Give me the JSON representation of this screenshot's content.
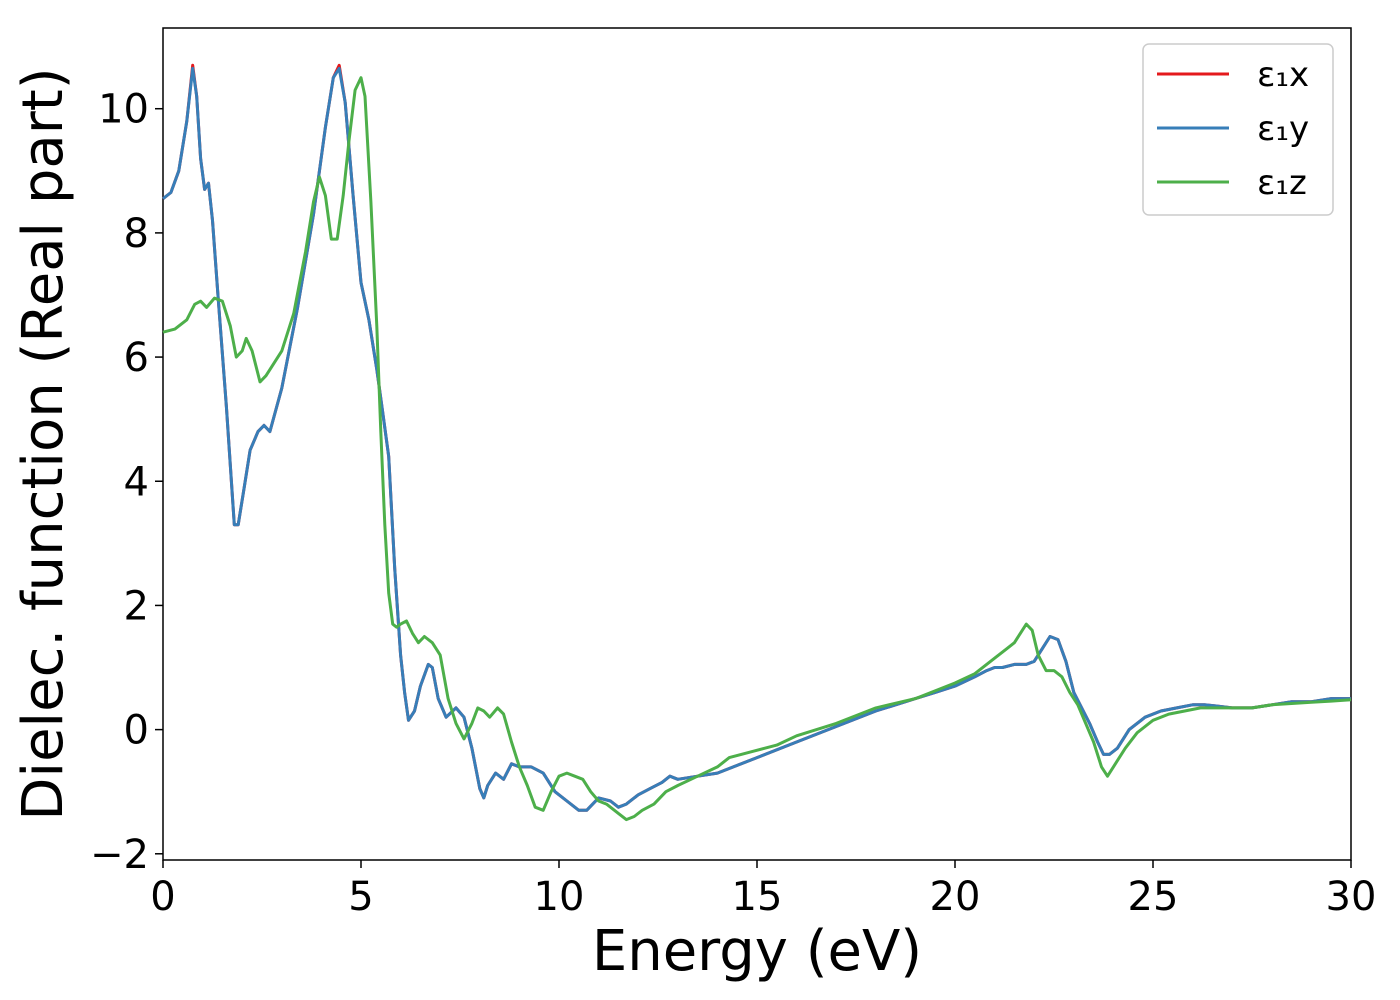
{
  "chart_data": {
    "type": "line",
    "xlabel": "Energy (eV)",
    "ylabel": "Dielec. function (Real part)",
    "xlim": [
      0,
      30
    ],
    "ylim": [
      -2.1,
      11.3
    ],
    "xticks": [
      0,
      5,
      10,
      15,
      20,
      25,
      30
    ],
    "yticks": [
      -2,
      0,
      2,
      4,
      6,
      8,
      10
    ],
    "xtick_labels": [
      "0",
      "5",
      "10",
      "15",
      "20",
      "25",
      "30"
    ],
    "ytick_labels": [
      "−2",
      "0",
      "2",
      "4",
      "6",
      "8",
      "10"
    ],
    "grid": false,
    "legend": "top-right",
    "series": [
      {
        "name": "ε₁x",
        "color": "#e41a1c",
        "x": [
          0,
          0.2,
          0.4,
          0.6,
          0.75,
          0.85,
          0.95,
          1.05,
          1.15,
          1.25,
          1.4,
          1.6,
          1.8,
          1.9,
          2.05,
          2.2,
          2.4,
          2.55,
          2.7,
          3.0,
          3.4,
          3.8,
          4.1,
          4.3,
          4.45,
          4.6,
          4.8,
          5.0,
          5.2,
          5.4,
          5.55,
          5.7,
          5.85,
          6.0,
          6.1,
          6.2,
          6.35,
          6.5,
          6.7,
          6.8,
          6.95,
          7.15,
          7.4,
          7.6,
          7.8,
          8.0,
          8.1,
          8.2,
          8.4,
          8.6,
          8.8,
          9.0,
          9.3,
          9.6,
          9.9,
          10.2,
          10.5,
          10.7,
          11.0,
          11.3,
          11.5,
          11.7,
          12.0,
          12.3,
          12.6,
          12.8,
          13.0,
          13.5,
          14.0,
          15.0,
          16.0,
          17.0,
          18.0,
          19.0,
          19.5,
          20.0,
          20.5,
          20.8,
          21.0,
          21.2,
          21.5,
          21.8,
          22.0,
          22.2,
          22.4,
          22.6,
          22.8,
          23.0,
          23.2,
          23.4,
          23.6,
          23.75,
          23.9,
          24.1,
          24.4,
          24.8,
          25.2,
          25.6,
          26.0,
          26.3,
          26.6,
          27.0,
          27.5,
          28.0,
          28.5,
          29.0,
          29.5,
          30.0
        ],
        "y": [
          8.55,
          8.65,
          9.0,
          9.8,
          10.7,
          10.2,
          9.2,
          8.7,
          8.8,
          8.2,
          6.9,
          5.2,
          3.3,
          3.3,
          3.9,
          4.5,
          4.8,
          4.9,
          4.8,
          5.5,
          6.8,
          8.3,
          9.7,
          10.5,
          10.7,
          10.1,
          8.6,
          7.2,
          6.6,
          5.8,
          5.1,
          4.4,
          2.6,
          1.2,
          0.6,
          0.15,
          0.3,
          0.7,
          1.05,
          1.0,
          0.5,
          0.2,
          0.35,
          0.2,
          -0.3,
          -0.95,
          -1.1,
          -0.9,
          -0.7,
          -0.8,
          -0.55,
          -0.6,
          -0.6,
          -0.7,
          -1.0,
          -1.15,
          -1.3,
          -1.3,
          -1.1,
          -1.15,
          -1.25,
          -1.2,
          -1.05,
          -0.95,
          -0.85,
          -0.75,
          -0.8,
          -0.75,
          -0.7,
          -0.45,
          -0.2,
          0.05,
          0.3,
          0.5,
          0.6,
          0.7,
          0.85,
          0.95,
          1.0,
          1.0,
          1.05,
          1.05,
          1.1,
          1.3,
          1.5,
          1.45,
          1.1,
          0.6,
          0.35,
          0.1,
          -0.2,
          -0.4,
          -0.4,
          -0.3,
          0.0,
          0.2,
          0.3,
          0.35,
          0.4,
          0.4,
          0.38,
          0.35,
          0.35,
          0.4,
          0.45,
          0.45,
          0.5,
          0.5
        ]
      },
      {
        "name": "ε₁y",
        "color": "#377eb8",
        "x": [
          0,
          0.2,
          0.4,
          0.6,
          0.75,
          0.85,
          0.95,
          1.05,
          1.15,
          1.25,
          1.4,
          1.6,
          1.8,
          1.9,
          2.05,
          2.2,
          2.4,
          2.55,
          2.7,
          3.0,
          3.4,
          3.8,
          4.1,
          4.3,
          4.45,
          4.6,
          4.8,
          5.0,
          5.2,
          5.4,
          5.55,
          5.7,
          5.85,
          6.0,
          6.1,
          6.2,
          6.35,
          6.5,
          6.7,
          6.8,
          6.95,
          7.15,
          7.4,
          7.6,
          7.8,
          8.0,
          8.1,
          8.2,
          8.4,
          8.6,
          8.8,
          9.0,
          9.3,
          9.6,
          9.9,
          10.2,
          10.5,
          10.7,
          11.0,
          11.3,
          11.5,
          11.7,
          12.0,
          12.3,
          12.6,
          12.8,
          13.0,
          13.5,
          14.0,
          15.0,
          16.0,
          17.0,
          18.0,
          19.0,
          19.5,
          20.0,
          20.5,
          20.8,
          21.0,
          21.2,
          21.5,
          21.8,
          22.0,
          22.2,
          22.4,
          22.6,
          22.8,
          23.0,
          23.2,
          23.4,
          23.6,
          23.75,
          23.9,
          24.1,
          24.4,
          24.8,
          25.2,
          25.6,
          26.0,
          26.3,
          26.6,
          27.0,
          27.5,
          28.0,
          28.5,
          29.0,
          29.5,
          30.0
        ],
        "y": [
          8.55,
          8.65,
          9.0,
          9.8,
          10.65,
          10.2,
          9.2,
          8.7,
          8.8,
          8.2,
          6.9,
          5.2,
          3.3,
          3.3,
          3.9,
          4.5,
          4.8,
          4.9,
          4.8,
          5.5,
          6.8,
          8.3,
          9.7,
          10.5,
          10.65,
          10.1,
          8.6,
          7.2,
          6.6,
          5.8,
          5.1,
          4.4,
          2.6,
          1.2,
          0.6,
          0.15,
          0.3,
          0.7,
          1.05,
          1.0,
          0.5,
          0.2,
          0.35,
          0.2,
          -0.3,
          -0.95,
          -1.1,
          -0.9,
          -0.7,
          -0.8,
          -0.55,
          -0.6,
          -0.6,
          -0.7,
          -1.0,
          -1.15,
          -1.3,
          -1.3,
          -1.1,
          -1.15,
          -1.25,
          -1.2,
          -1.05,
          -0.95,
          -0.85,
          -0.75,
          -0.8,
          -0.75,
          -0.7,
          -0.45,
          -0.2,
          0.05,
          0.3,
          0.5,
          0.6,
          0.7,
          0.85,
          0.95,
          1.0,
          1.0,
          1.05,
          1.05,
          1.1,
          1.3,
          1.5,
          1.45,
          1.1,
          0.6,
          0.35,
          0.1,
          -0.2,
          -0.4,
          -0.4,
          -0.3,
          0.0,
          0.2,
          0.3,
          0.35,
          0.4,
          0.4,
          0.38,
          0.35,
          0.35,
          0.4,
          0.45,
          0.45,
          0.5,
          0.5
        ]
      },
      {
        "name": "ε₁z",
        "color": "#4daf4a",
        "x": [
          0,
          0.3,
          0.6,
          0.8,
          0.95,
          1.1,
          1.3,
          1.5,
          1.7,
          1.85,
          2.0,
          2.1,
          2.25,
          2.45,
          2.6,
          2.8,
          3.0,
          3.3,
          3.6,
          3.8,
          3.95,
          4.1,
          4.25,
          4.4,
          4.55,
          4.7,
          4.85,
          5.0,
          5.1,
          5.25,
          5.4,
          5.5,
          5.6,
          5.7,
          5.8,
          5.9,
          6.0,
          6.15,
          6.3,
          6.45,
          6.6,
          6.8,
          7.0,
          7.2,
          7.4,
          7.6,
          7.8,
          7.95,
          8.1,
          8.25,
          8.45,
          8.6,
          8.8,
          9.0,
          9.2,
          9.4,
          9.6,
          9.8,
          10.0,
          10.2,
          10.4,
          10.6,
          10.8,
          11.0,
          11.2,
          11.5,
          11.7,
          11.9,
          12.1,
          12.4,
          12.7,
          13.0,
          13.5,
          14.0,
          14.3,
          14.6,
          14.9,
          15.2,
          15.5,
          16.0,
          17.0,
          18.0,
          19.0,
          20.0,
          20.5,
          21.0,
          21.3,
          21.5,
          21.65,
          21.8,
          21.95,
          22.1,
          22.3,
          22.5,
          22.7,
          22.9,
          23.1,
          23.3,
          23.5,
          23.7,
          23.85,
          24.0,
          24.3,
          24.6,
          25.0,
          25.4,
          25.8,
          26.2,
          26.6,
          27.0,
          27.5,
          28.0,
          28.5,
          29.0,
          29.5,
          30.0
        ],
        "y": [
          6.4,
          6.45,
          6.6,
          6.85,
          6.9,
          6.8,
          6.95,
          6.9,
          6.5,
          6.0,
          6.1,
          6.3,
          6.1,
          5.6,
          5.7,
          5.9,
          6.1,
          6.7,
          7.7,
          8.5,
          8.9,
          8.6,
          7.9,
          7.9,
          8.6,
          9.5,
          10.3,
          10.5,
          10.2,
          8.5,
          6.5,
          4.8,
          3.3,
          2.2,
          1.7,
          1.65,
          1.7,
          1.75,
          1.55,
          1.4,
          1.5,
          1.4,
          1.2,
          0.5,
          0.1,
          -0.15,
          0.1,
          0.35,
          0.3,
          0.2,
          0.35,
          0.25,
          -0.2,
          -0.6,
          -0.9,
          -1.25,
          -1.3,
          -1.0,
          -0.75,
          -0.7,
          -0.75,
          -0.8,
          -1.0,
          -1.15,
          -1.2,
          -1.35,
          -1.45,
          -1.4,
          -1.3,
          -1.2,
          -1.0,
          -0.9,
          -0.75,
          -0.6,
          -0.45,
          -0.4,
          -0.35,
          -0.3,
          -0.25,
          -0.1,
          0.1,
          0.35,
          0.5,
          0.75,
          0.9,
          1.15,
          1.3,
          1.4,
          1.55,
          1.7,
          1.6,
          1.2,
          0.95,
          0.95,
          0.85,
          0.6,
          0.4,
          0.1,
          -0.2,
          -0.6,
          -0.75,
          -0.6,
          -0.3,
          -0.05,
          0.15,
          0.25,
          0.3,
          0.35,
          0.35,
          0.35,
          0.35,
          0.4,
          0.42,
          0.44,
          0.46,
          0.48
        ]
      }
    ]
  }
}
